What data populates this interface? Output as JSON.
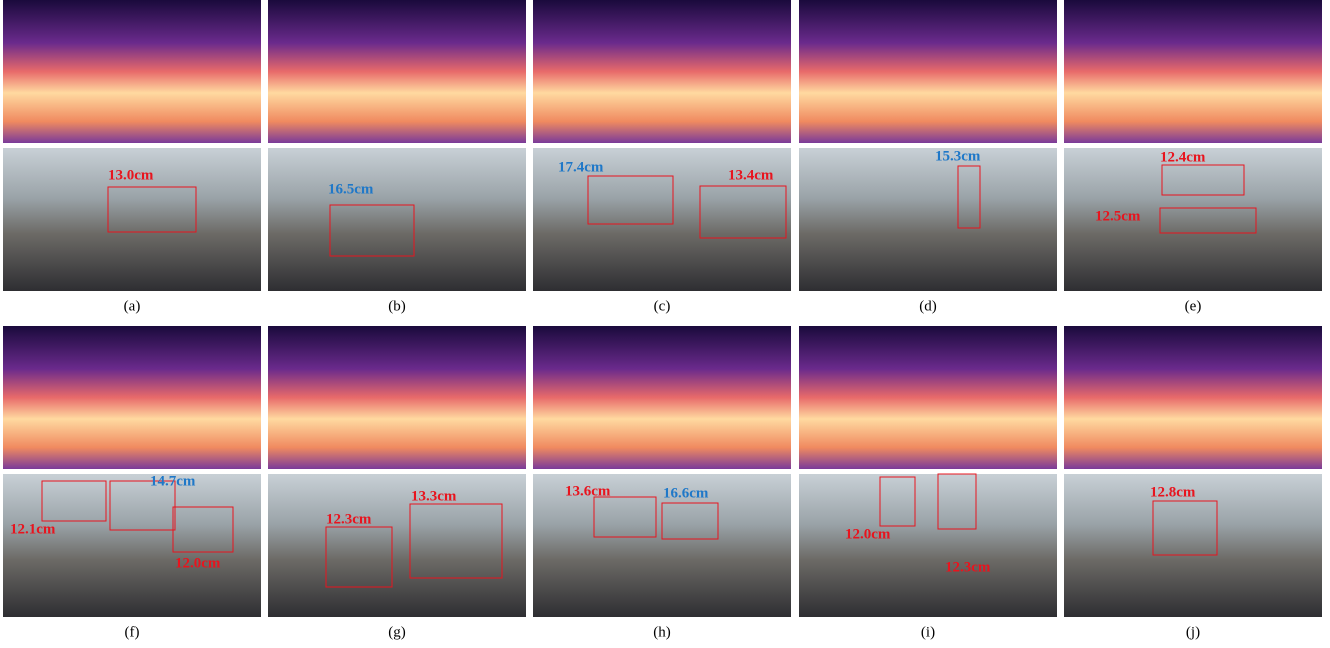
{
  "panels": [
    {
      "caption": "(a)",
      "measurements": [
        {
          "text": "13.0cm",
          "color": "#e8141e"
        }
      ]
    },
    {
      "caption": "(b)",
      "measurements": [
        {
          "text": "16.5cm",
          "color": "#1f78c8"
        }
      ]
    },
    {
      "caption": "(c)",
      "measurements": [
        {
          "text": "17.4cm",
          "color": "#1f78c8"
        },
        {
          "text": "13.4cm",
          "color": "#e8141e"
        }
      ]
    },
    {
      "caption": "(d)",
      "measurements": [
        {
          "text": "15.3cm",
          "color": "#1f78c8"
        }
      ]
    },
    {
      "caption": "(e)",
      "measurements": [
        {
          "text": "12.4cm",
          "color": "#e8141e"
        },
        {
          "text": "12.5cm",
          "color": "#e8141e"
        }
      ]
    },
    {
      "caption": "(f)",
      "measurements": [
        {
          "text": "12.1cm",
          "color": "#e8141e"
        },
        {
          "text": "14.7cm",
          "color": "#1f78c8"
        },
        {
          "text": "12.0cm",
          "color": "#e8141e"
        }
      ]
    },
    {
      "caption": "(g)",
      "measurements": [
        {
          "text": "12.3cm",
          "color": "#e8141e"
        },
        {
          "text": "13.3cm",
          "color": "#e8141e"
        }
      ]
    },
    {
      "caption": "(h)",
      "measurements": [
        {
          "text": "13.6cm",
          "color": "#e8141e"
        },
        {
          "text": "16.6cm",
          "color": "#1f78c8"
        }
      ]
    },
    {
      "caption": "(i)",
      "measurements": [
        {
          "text": "12.0cm",
          "color": "#e8141e"
        },
        {
          "text": "12.3cm",
          "color": "#e8141e"
        }
      ]
    },
    {
      "caption": "(j)",
      "measurements": [
        {
          "text": "12.8cm",
          "color": "#e8141e"
        }
      ]
    }
  ]
}
